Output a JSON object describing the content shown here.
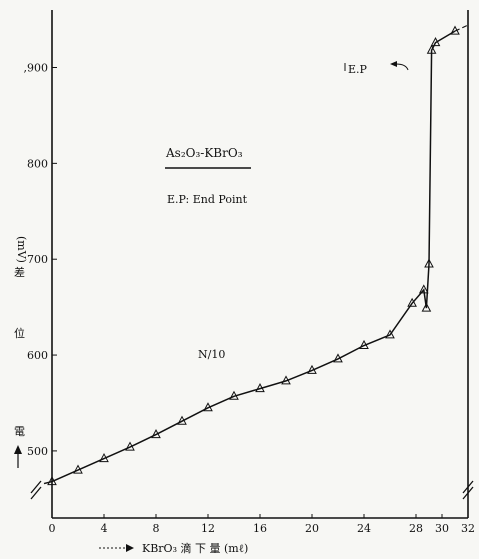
{
  "chart_data": {
    "type": "line",
    "title": "As₂O₃-KBrO₃",
    "subtitle": "E.P: End Point",
    "xlabel": "KBrO₃  滴 下 量  (mℓ)",
    "ylabel_chars": [
      "電",
      "位",
      "差"
    ],
    "ylabel_unit": "(mV)",
    "xlim": [
      0,
      32
    ],
    "ylim": [
      430,
      960
    ],
    "x_ticks": [
      0,
      4,
      8,
      12,
      16,
      20,
      24,
      28,
      30,
      32
    ],
    "y_ticks": [
      500,
      600,
      700,
      800,
      900
    ],
    "y_tick_labels": [
      "500",
      "600",
      "700",
      "800",
      ",900"
    ],
    "series": [
      {
        "name": "N/10",
        "x": [
          0,
          2,
          4,
          6,
          8,
          10,
          12,
          14,
          16,
          18,
          20,
          22,
          24,
          26,
          27.7,
          28.6,
          28.8,
          29.0,
          29.2,
          29.5,
          31
        ],
        "y": [
          468,
          480,
          492,
          504,
          517,
          531,
          545,
          557,
          565,
          573,
          584,
          596,
          610,
          621,
          654,
          668,
          649,
          695,
          918,
          926,
          938
        ]
      }
    ],
    "annotations": {
      "endpoint_label": "E.P"
    }
  }
}
